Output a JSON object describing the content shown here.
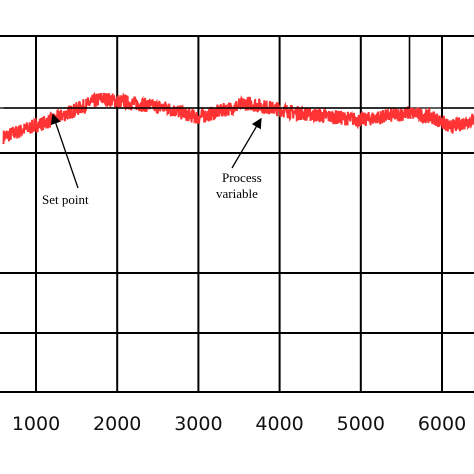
{
  "chart_data": {
    "type": "line",
    "title": "",
    "xlabel": "",
    "ylabel": "",
    "grid": true,
    "x_ticks": [
      1000,
      2000,
      3000,
      4000,
      5000,
      6000
    ],
    "xlim": [
      600,
      7000
    ],
    "series": [
      {
        "role": "set-point",
        "color": "#000000",
        "x": [
          600,
          5600,
          5600,
          6000,
          6000,
          7000
        ],
        "y": [
          0,
          0,
          0.3,
          0.3,
          0,
          0
        ]
      },
      {
        "role": "process-variable",
        "color": "#ff3333",
        "x": [
          600,
          1200,
          1800,
          2600,
          3000,
          3600,
          4200,
          5000,
          5600,
          5900,
          6100,
          7000
        ],
        "y": [
          -0.12,
          -0.05,
          0.04,
          0.0,
          -0.04,
          0.02,
          -0.02,
          -0.05,
          -0.02,
          -0.04,
          -0.08,
          0.02
        ]
      }
    ],
    "annotations": [
      {
        "text": "Set point",
        "x": 1250,
        "y": 0
      },
      {
        "lines": [
          "Process",
          "variable"
        ],
        "x": 3750,
        "y": 0
      }
    ]
  }
}
